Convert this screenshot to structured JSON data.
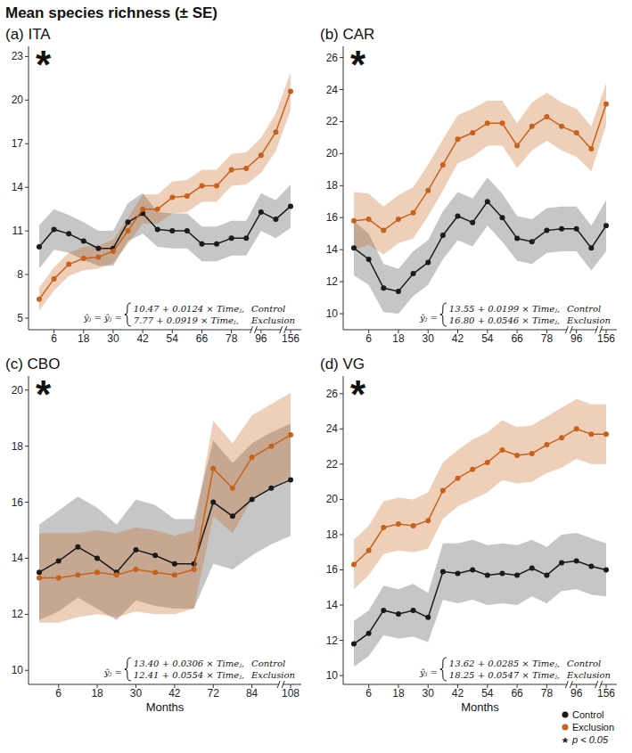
{
  "title": "Mean species richness (± SE)",
  "significance_note": {
    "symbol": "*",
    "label": "p < 0.05"
  },
  "chart_data": [
    {
      "type": "line",
      "title": "(a) ITA",
      "annotation": "*",
      "marker": "circle",
      "equation_lhs": "ŷⱼ = ŷⱼ =",
      "categories": [
        null,
        "6",
        null,
        "18",
        null,
        "30",
        null,
        "42",
        null,
        "54",
        null,
        "66",
        null,
        "78",
        null,
        "96",
        null,
        "156"
      ],
      "x_breaks": [
        14,
        16
      ],
      "ylim": [
        4.2,
        23.7
      ],
      "yticks": [
        5,
        8,
        11,
        14,
        17,
        20,
        23
      ],
      "series": [
        {
          "name": "Control",
          "color": "#1a1a1a",
          "equation": "10.47 + 0.0124 × Timeⱼ,",
          "values": [
            9.9,
            11.1,
            10.8,
            10.3,
            9.8,
            9.8,
            11.6,
            12.2,
            11.1,
            11.0,
            11.0,
            10.1,
            10.1,
            10.5,
            10.5,
            12.3,
            11.8,
            12.7
          ],
          "errors": [
            1.5,
            1.4,
            1.3,
            1.3,
            1.2,
            1.2,
            1.3,
            1.4,
            1.2,
            1.2,
            1.2,
            1.2,
            1.2,
            1.2,
            1.2,
            1.3,
            1.3,
            1.5
          ]
        },
        {
          "name": "Exclusion",
          "color": "#c8621a",
          "equation": "7.77 + 0.0919 × Timeⱼ,",
          "values": [
            6.3,
            7.7,
            8.7,
            9.1,
            9.2,
            9.6,
            11.0,
            12.5,
            12.5,
            13.3,
            13.4,
            14.1,
            14.1,
            15.2,
            15.3,
            16.2,
            17.8,
            20.6
          ],
          "errors": [
            0.8,
            0.8,
            0.8,
            0.8,
            0.8,
            0.8,
            0.9,
            1.0,
            1.0,
            1.1,
            1.1,
            1.1,
            1.1,
            1.1,
            1.1,
            1.2,
            1.3,
            1.3
          ]
        }
      ]
    },
    {
      "type": "line",
      "title": "(b) CAR",
      "annotation": "*",
      "marker": "circle",
      "equation_lhs": "ŷⱼ =",
      "categories": [
        null,
        "6",
        null,
        "18",
        null,
        "30",
        null,
        "42",
        null,
        "54",
        null,
        "66",
        null,
        "78",
        null,
        "96",
        null,
        "156"
      ],
      "x_breaks": [
        14,
        16
      ],
      "ylim": [
        9,
        26.7
      ],
      "yticks": [
        10,
        12,
        14,
        16,
        18,
        20,
        22,
        24,
        26
      ],
      "series": [
        {
          "name": "Control",
          "color": "#1a1a1a",
          "equation": "13.55 + 0.0199 × Timeⱼ,",
          "values": [
            14.1,
            13.4,
            11.6,
            11.4,
            12.5,
            13.2,
            14.9,
            16.1,
            15.7,
            17.0,
            16.0,
            14.7,
            14.5,
            15.2,
            15.3,
            15.3,
            14.1,
            15.5
          ],
          "errors": [
            1.7,
            1.6,
            1.5,
            1.4,
            1.4,
            1.4,
            1.5,
            1.5,
            1.5,
            1.5,
            1.5,
            1.4,
            1.4,
            1.4,
            1.4,
            1.4,
            1.4,
            1.6
          ]
        },
        {
          "name": "Exclusion",
          "color": "#c8621a",
          "equation": "16.80 + 0.0546 × Timeⱼ,",
          "values": [
            15.8,
            15.9,
            15.2,
            15.9,
            16.3,
            17.7,
            19.3,
            20.9,
            21.3,
            21.9,
            21.9,
            20.5,
            21.7,
            22.3,
            21.7,
            21.3,
            20.3,
            23.1
          ],
          "errors": [
            1.8,
            1.6,
            1.5,
            1.5,
            1.6,
            1.6,
            1.6,
            1.5,
            1.5,
            1.4,
            1.4,
            1.4,
            1.5,
            1.5,
            1.5,
            1.5,
            1.4,
            1.3
          ]
        }
      ]
    },
    {
      "type": "line",
      "title": "(c) CBO",
      "annotation": "*",
      "marker": "circle",
      "xlabel": "Months",
      "equation_lhs": "ŷⱼ =",
      "categories": [
        null,
        "6",
        null,
        "18",
        null,
        "30",
        null,
        "42",
        null,
        "72",
        null,
        "84",
        null,
        "108"
      ],
      "x_breaks": [
        12
      ],
      "ylim": [
        9.5,
        20.5
      ],
      "yticks": [
        10,
        12,
        14,
        16,
        18,
        20
      ],
      "series": [
        {
          "name": "Control",
          "color": "#1a1a1a",
          "equation": "13.40 + 0.0306 × Timeⱼ,",
          "values": [
            13.5,
            13.9,
            14.4,
            14.0,
            13.5,
            14.3,
            14.1,
            13.8,
            13.8,
            16.0,
            15.5,
            16.1,
            16.5,
            16.8
          ],
          "errors": [
            1.7,
            1.8,
            1.8,
            1.8,
            1.7,
            1.8,
            1.8,
            1.6,
            1.6,
            2.2,
            1.9,
            2.0,
            2.0,
            2.0
          ]
        },
        {
          "name": "Exclusion",
          "color": "#c8621a",
          "equation": "12.41 + 0.0554 × Timeⱼ,",
          "values": [
            13.3,
            13.3,
            13.4,
            13.5,
            13.4,
            13.6,
            13.5,
            13.4,
            13.6,
            17.2,
            16.5,
            17.6,
            18.0,
            18.4
          ],
          "errors": [
            1.6,
            1.6,
            1.5,
            1.5,
            1.5,
            1.5,
            1.5,
            1.4,
            1.4,
            1.7,
            1.6,
            1.5,
            1.5,
            1.5
          ]
        }
      ]
    },
    {
      "type": "line",
      "title": "(d) VG",
      "annotation": "*",
      "marker": "circle",
      "xlabel": "Months",
      "legend": "bottom-right",
      "equation_lhs": "ŷⱼ =",
      "categories": [
        null,
        "6",
        null,
        "18",
        null,
        "30",
        null,
        "42",
        null,
        "54",
        null,
        "66",
        null,
        "78",
        null,
        "96",
        null,
        "156"
      ],
      "x_breaks": [
        14,
        16
      ],
      "ylim": [
        9.5,
        27
      ],
      "yticks": [
        10,
        12,
        14,
        16,
        18,
        20,
        22,
        24,
        26
      ],
      "series": [
        {
          "name": "Control",
          "color": "#1a1a1a",
          "equation": "13.62 + 0.0285 × Timeⱼ,",
          "values": [
            11.8,
            12.4,
            13.7,
            13.5,
            13.7,
            13.3,
            15.9,
            15.8,
            16.0,
            15.7,
            15.8,
            15.7,
            16.1,
            15.7,
            16.4,
            16.5,
            16.2,
            16.0
          ],
          "errors": [
            1.3,
            1.3,
            1.4,
            1.4,
            1.5,
            1.4,
            1.6,
            1.7,
            1.7,
            1.7,
            1.7,
            1.7,
            1.6,
            1.6,
            1.6,
            1.6,
            1.6,
            1.5
          ]
        },
        {
          "name": "Exclusion",
          "color": "#c8621a",
          "equation": "18.25 + 0.0547 × Timeⱼ,",
          "values": [
            16.3,
            17.1,
            18.4,
            18.6,
            18.5,
            18.8,
            20.5,
            21.2,
            21.7,
            22.1,
            22.8,
            22.5,
            22.6,
            23.1,
            23.5,
            24.0,
            23.7,
            23.7
          ],
          "errors": [
            1.4,
            1.4,
            1.5,
            1.5,
            1.5,
            1.6,
            1.6,
            1.6,
            1.7,
            1.7,
            1.7,
            1.6,
            1.6,
            1.6,
            1.7,
            1.7,
            1.7,
            1.7
          ]
        }
      ]
    }
  ]
}
